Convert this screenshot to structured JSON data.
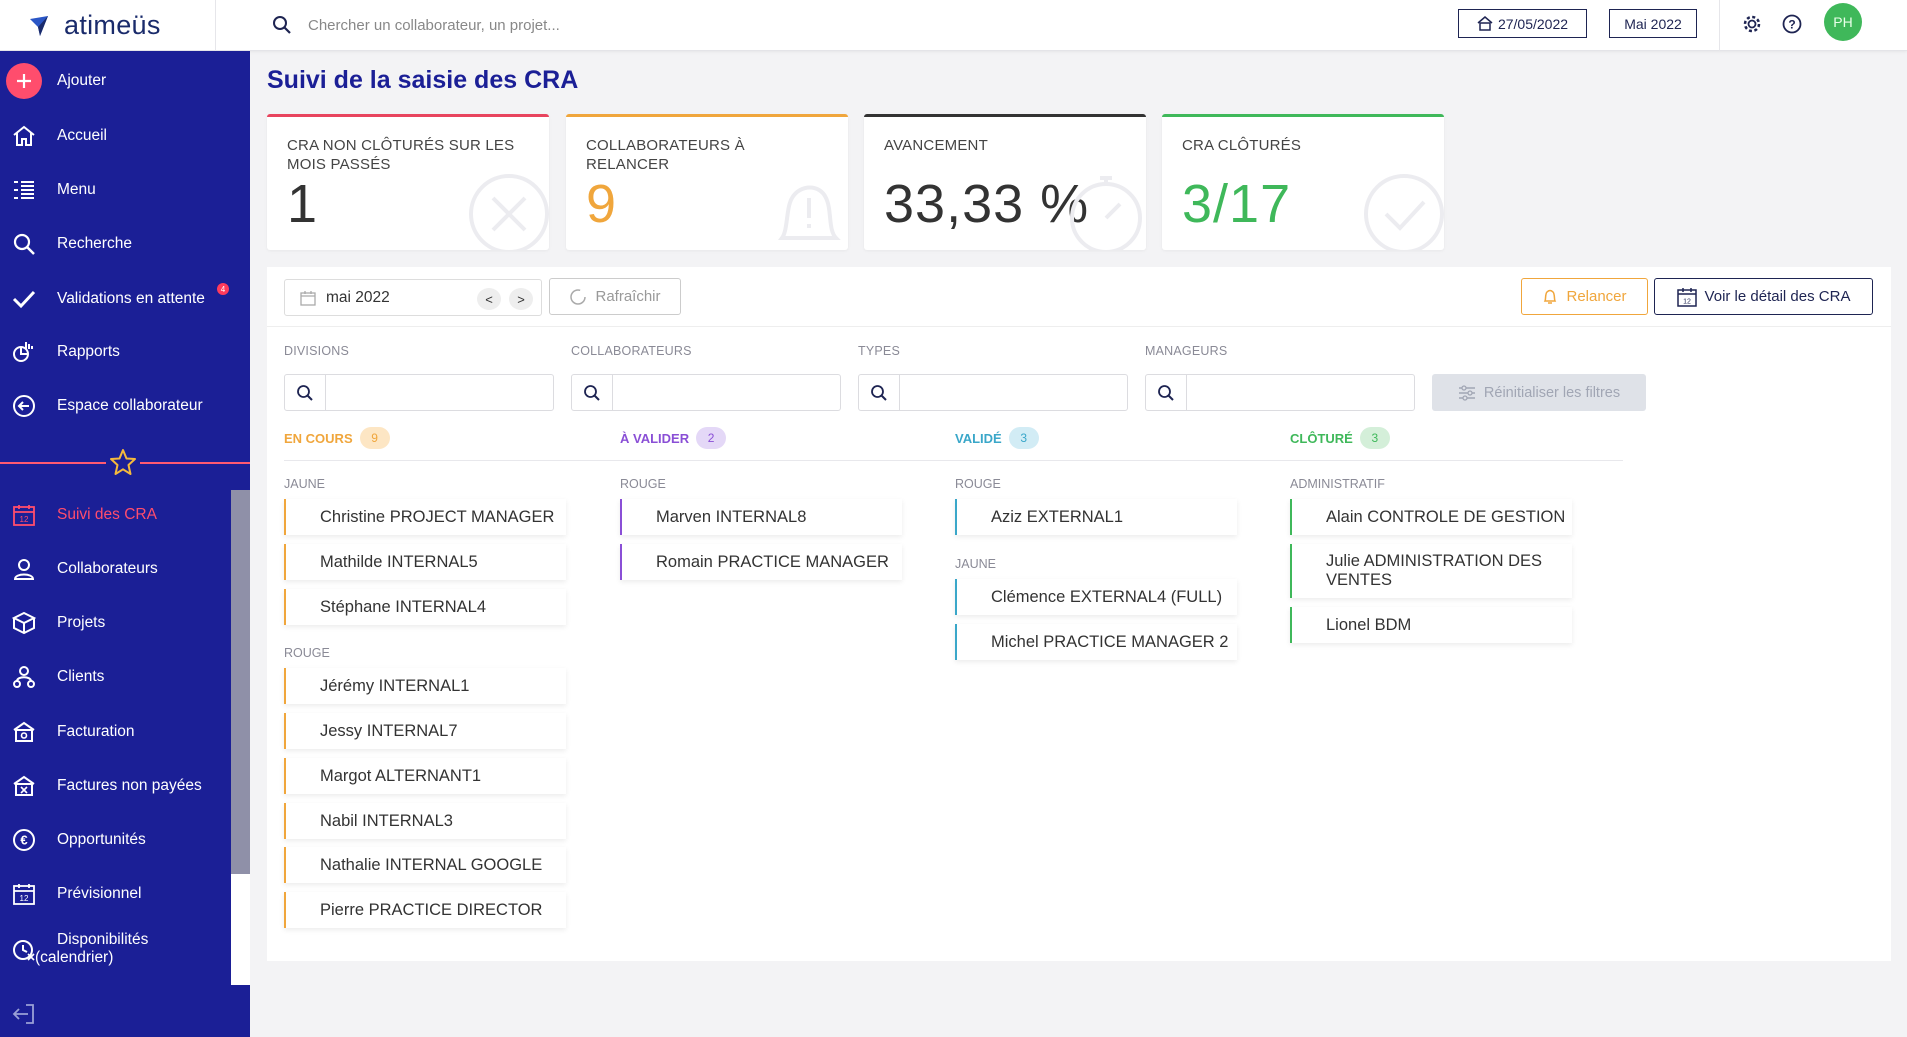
{
  "app": {
    "name": "atimeüs"
  },
  "header": {
    "search_placeholder": "Chercher un collaborateur, un projet...",
    "date_button": "27/05/2022",
    "period_button": "Mai 2022",
    "avatar_initials": "PH",
    "avatar_color": "#3fb85a"
  },
  "sidebar": {
    "items": [
      {
        "label": "Ajouter",
        "icon": "plus-icon"
      },
      {
        "label": "Accueil",
        "icon": "home-icon"
      },
      {
        "label": "Menu",
        "icon": "menu-list-icon"
      },
      {
        "label": "Recherche",
        "icon": "search-icon"
      },
      {
        "label": "Validations en attente",
        "icon": "check-icon",
        "badge": "4"
      },
      {
        "label": "Rapports",
        "icon": "report-icon"
      },
      {
        "label": "Espace collaborateur",
        "icon": "arrow-circle-icon"
      },
      {
        "label": "Suivi des CRA",
        "icon": "calendar-icon",
        "active": true
      },
      {
        "label": "Collaborateurs",
        "icon": "user-icon"
      },
      {
        "label": "Projets",
        "icon": "box-icon"
      },
      {
        "label": "Clients",
        "icon": "clients-icon"
      },
      {
        "label": "Facturation",
        "icon": "billing-icon"
      },
      {
        "label": "Factures non payées",
        "icon": "unpaid-icon"
      },
      {
        "label": "Opportunités",
        "icon": "euro-icon"
      },
      {
        "label": "Prévisionnel",
        "icon": "forecast-calendar-icon"
      },
      {
        "label": "Disponibilités",
        "label2": "(calendrier)",
        "icon": "availability-icon"
      }
    ]
  },
  "page": {
    "title": "Suivi de la saisie des CRA"
  },
  "cards": [
    {
      "title": "CRA NON CLÔTURÉS SUR LES MOIS PASSÉS",
      "value": "1",
      "color": "#e8445e",
      "value_color": "#333333"
    },
    {
      "title": "COLLABORATEURS À RELANCER",
      "value": "9",
      "color": "#f0a63c",
      "value_color": "#f0a63c"
    },
    {
      "title": "AVANCEMENT",
      "value": "33,33 %",
      "color": "#333333",
      "value_color": "#333333"
    },
    {
      "title": "CRA CLÔTURÉS",
      "value": "3/17",
      "color": "#3fb85a",
      "value_color": "#3fb85a"
    }
  ],
  "toolbar": {
    "month": "mai 2022",
    "prev": "<",
    "next": ">",
    "refresh": "Rafraîchir",
    "remind": "Relancer",
    "detail": "Voir le détail des CRA"
  },
  "filters": {
    "labels": [
      "DIVISIONS",
      "COLLABORATEURS",
      "TYPES",
      "MANAGEURS"
    ],
    "reset": "Réinitialiser les filtres"
  },
  "columns": [
    {
      "title": "EN COURS",
      "count": "9",
      "color": "#f0a63c",
      "badge_bg": "#fde6c4",
      "groups": [
        {
          "name": "JAUNE",
          "items": [
            "Christine PROJECT MANAGER",
            "Mathilde INTERNAL5",
            "Stéphane INTERNAL4"
          ]
        },
        {
          "name": "ROUGE",
          "items": [
            "Jérémy INTERNAL1",
            "Jessy INTERNAL7",
            "Margot ALTERNANT1",
            "Nabil INTERNAL3",
            "Nathalie INTERNAL GOOGLE",
            "Pierre PRACTICE DIRECTOR"
          ]
        }
      ]
    },
    {
      "title": "À VALIDER",
      "count": "2",
      "color": "#8a4fd6",
      "badge_bg": "#e4d8f7",
      "groups": [
        {
          "name": "ROUGE",
          "items": [
            "Marven INTERNAL8",
            "Romain PRACTICE MANAGER"
          ]
        }
      ]
    },
    {
      "title": "VALIDÉ",
      "count": "3",
      "color": "#3aa7c9",
      "badge_bg": "#d2ecf5",
      "groups": [
        {
          "name": "ROUGE",
          "items": [
            "Aziz EXTERNAL1"
          ]
        },
        {
          "name": "JAUNE",
          "items": [
            "Clémence EXTERNAL4 (FULL)",
            "Michel PRACTICE MANAGER 2"
          ]
        }
      ]
    },
    {
      "title": "CLÔTURÉ",
      "count": "3",
      "color": "#3fb85a",
      "badge_bg": "#d4efd9",
      "groups": [
        {
          "name": "ADMINISTRATIF",
          "items": [
            "Alain CONTROLE DE GESTION",
            "Julie ADMINISTRATION DES VENTES",
            "Lionel BDM"
          ]
        }
      ]
    }
  ]
}
